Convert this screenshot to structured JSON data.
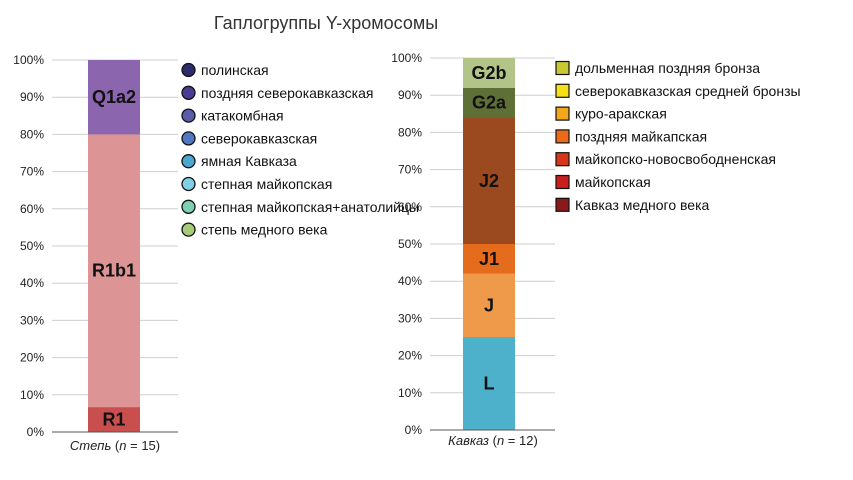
{
  "title": "Гаплогруппы Y-хромосомы",
  "chart_data": [
    {
      "type": "bar",
      "stacked": true,
      "category": "Степь",
      "n_label": "n",
      "n": 15,
      "caption_open": " (",
      "caption_eq": " = ",
      "caption_close": ")",
      "yticks": [
        "0%",
        "10%",
        "20%",
        "30%",
        "40%",
        "50%",
        "60%",
        "70%",
        "80%",
        "90%",
        "100%"
      ],
      "ylim": [
        0,
        100
      ],
      "segments": [
        {
          "label": "R1",
          "value": 6.7,
          "color": "#c94f4f"
        },
        {
          "label": "R1b1",
          "value": 73.3,
          "color": "#dc9494"
        },
        {
          "label": "Q1a2",
          "value": 20.0,
          "color": "#8b65ad"
        }
      ],
      "legend": [
        {
          "text": "полинская",
          "color": "#2b2b6e"
        },
        {
          "text": "поздняя северокавказская",
          "color": "#4a3c94"
        },
        {
          "text": "катакомбная",
          "color": "#5b5ca8"
        },
        {
          "text": "северокавказская",
          "color": "#4f77c2"
        },
        {
          "text": "ямная Кавказа",
          "color": "#4ba6d0"
        },
        {
          "text": "степная майкопская",
          "color": "#7fd0e6"
        },
        {
          "text": "степная майкопская+анатолийцы",
          "color": "#7dd1b0"
        },
        {
          "text": "степь медного века",
          "color": "#a6cc7a"
        }
      ]
    },
    {
      "type": "bar",
      "stacked": true,
      "category": "Кавказ",
      "n_label": "n",
      "n": 12,
      "caption_open": " (",
      "caption_eq": " = ",
      "caption_close": ")",
      "yticks": [
        "0%",
        "10%",
        "20%",
        "30%",
        "40%",
        "50%",
        "60%",
        "70%",
        "80%",
        "90%",
        "100%"
      ],
      "ylim": [
        0,
        100
      ],
      "segments": [
        {
          "label": "L",
          "value": 25.0,
          "color": "#4eb1cc"
        },
        {
          "label": "J",
          "value": 17.0,
          "color": "#ef9a4a"
        },
        {
          "label": "J1",
          "value": 8.0,
          "color": "#e46c1c"
        },
        {
          "label": "J2",
          "value": 34.0,
          "color": "#9a4a1e"
        },
        {
          "label": "G2a",
          "value": 8.0,
          "color": "#5f7036"
        },
        {
          "label": "G2b",
          "value": 8.0,
          "color": "#b3c489"
        }
      ],
      "legend": [
        {
          "text": "дольменная поздняя бронза",
          "color": "#c8c832"
        },
        {
          "text": "северокавказская средней бронзы",
          "color": "#f5e016"
        },
        {
          "text": "куро-аракская",
          "color": "#f4a71c"
        },
        {
          "text": "поздняя майкапская",
          "color": "#ea6a1a"
        },
        {
          "text": "майкопско-новосвободненская",
          "color": "#d8361c"
        },
        {
          "text": "майкопская",
          "color": "#c81e1e"
        },
        {
          "text": "Кавказ медного века",
          "color": "#8a1a1a"
        }
      ]
    }
  ]
}
